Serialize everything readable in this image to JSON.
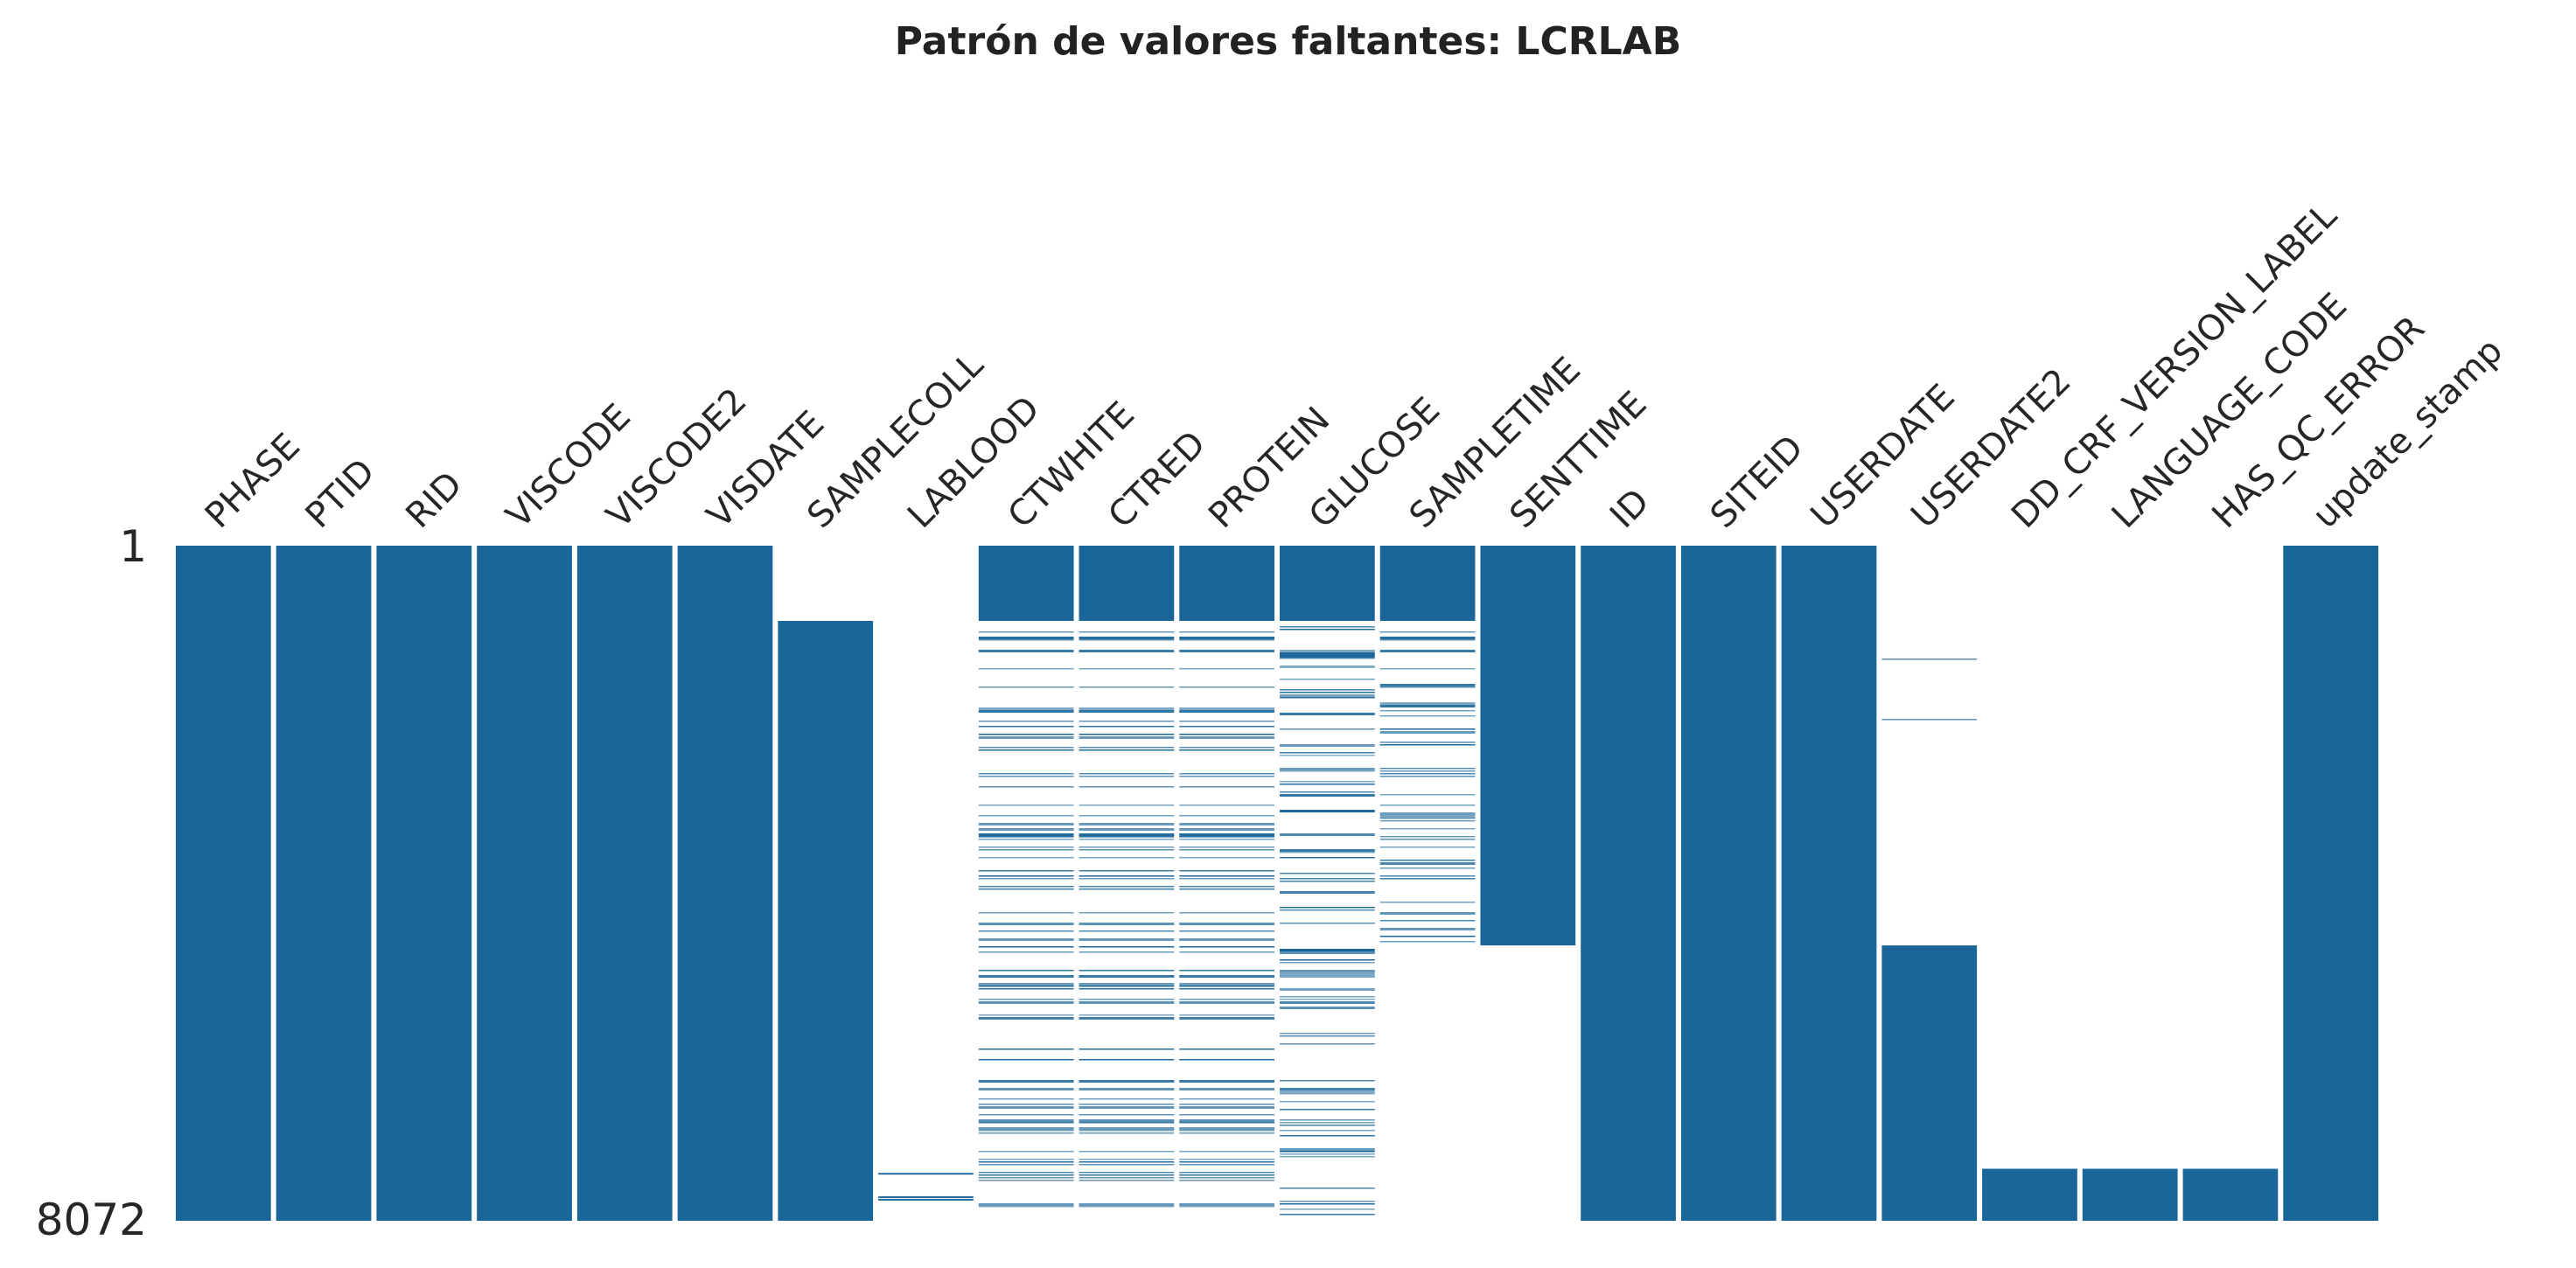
{
  "chart_data": {
    "type": "heatmap",
    "title": "Patrón de valores faltantes: LCRLAB",
    "row_labels": [
      "1",
      "8072"
    ],
    "total_rows": 8072,
    "colors": {
      "present": "#1b6698",
      "missing": "#ffffff"
    },
    "columns": [
      {
        "name": "PHASE",
        "present": [
          [
            1,
            8072
          ]
        ]
      },
      {
        "name": "PTID",
        "present": [
          [
            1,
            8072
          ]
        ]
      },
      {
        "name": "RID",
        "present": [
          [
            1,
            8072
          ]
        ]
      },
      {
        "name": "VISCODE",
        "present": [
          [
            1,
            8072
          ]
        ]
      },
      {
        "name": "VISCODE2",
        "present": [
          [
            1,
            8072
          ]
        ]
      },
      {
        "name": "VISDATE",
        "present": [
          [
            1,
            8072
          ]
        ]
      },
      {
        "name": "SAMPLECOLL",
        "present": [
          [
            900,
            8072
          ]
        ]
      },
      {
        "name": "LABLOOD",
        "present": [
          [
            7500,
            7520
          ],
          [
            7780,
            7800
          ],
          [
            7810,
            7830
          ]
        ]
      },
      {
        "name": "CTWHITE",
        "present": [
          [
            1,
            900
          ]
        ],
        "sparse": [
          [
            900,
            8072,
            0.35
          ]
        ]
      },
      {
        "name": "CTRED",
        "present": [
          [
            1,
            900
          ]
        ],
        "sparse": [
          [
            900,
            8072,
            0.35
          ]
        ]
      },
      {
        "name": "PROTEIN",
        "present": [
          [
            1,
            900
          ]
        ],
        "sparse": [
          [
            900,
            8072,
            0.35
          ]
        ]
      },
      {
        "name": "GLUCOSE",
        "present": [
          [
            1,
            900
          ]
        ],
        "sparse": [
          [
            900,
            8072,
            0.32
          ]
        ]
      },
      {
        "name": "SAMPLETIME",
        "present": [
          [
            1,
            900
          ]
        ],
        "sparse": [
          [
            900,
            4780,
            0.38
          ]
        ]
      },
      {
        "name": "SENTTIME",
        "present": [
          [
            1,
            4780
          ]
        ]
      },
      {
        "name": "ID",
        "present": [
          [
            1,
            8072
          ]
        ]
      },
      {
        "name": "SITEID",
        "present": [
          [
            1,
            8072
          ]
        ]
      },
      {
        "name": "USERDATE",
        "present": [
          [
            1,
            8072
          ]
        ]
      },
      {
        "name": "USERDATE2",
        "present": [
          [
            4780,
            8072
          ]
        ],
        "sparse": [
          [
            880,
            2700,
            0.08
          ]
        ]
      },
      {
        "name": "DD_CRF_VERSION_LABEL",
        "present": [
          [
            7450,
            8072
          ]
        ]
      },
      {
        "name": "LANGUAGE_CODE",
        "present": [
          [
            7450,
            8072
          ]
        ]
      },
      {
        "name": "HAS_QC_ERROR",
        "present": [
          [
            7450,
            8072
          ]
        ]
      },
      {
        "name": "update_stamp",
        "present": [
          [
            1,
            8072
          ]
        ]
      }
    ]
  }
}
